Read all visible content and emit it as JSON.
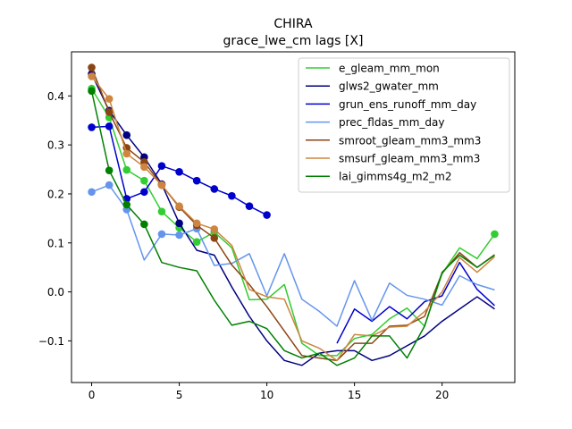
{
  "chart_data": {
    "type": "line",
    "title": "CHIRA",
    "subtitle": "grace_lwe_cm lags [X]",
    "xlabel": "",
    "ylabel": "",
    "xlim": [
      -1.15,
      24.15
    ],
    "ylim": [
      -0.185,
      0.49
    ],
    "x_ticks": [
      0,
      5,
      10,
      15,
      20
    ],
    "y_ticks": [
      -0.1,
      0.0,
      0.1,
      0.2,
      0.3,
      0.4
    ],
    "y_tick_labels": [
      "−0.1",
      "0.0",
      "0.1",
      "0.2",
      "0.3",
      "0.4"
    ],
    "grid": false,
    "legend_position": "top-right",
    "x": [
      0,
      1,
      2,
      3,
      4,
      5,
      6,
      7,
      8,
      9,
      10,
      11,
      12,
      13,
      14,
      15,
      16,
      17,
      18,
      19,
      20,
      21,
      22,
      23
    ],
    "series": [
      {
        "name": "e_gleam_mm_mon",
        "color": "#32cd32",
        "values": [
          0.415,
          0.356,
          0.249,
          0.227,
          0.164,
          0.131,
          0.102,
          0.122,
          0.09,
          -0.016,
          -0.015,
          0.015,
          -0.105,
          -0.13,
          -0.13,
          -0.095,
          -0.087,
          -0.055,
          -0.033,
          -0.07,
          0.037,
          0.09,
          0.068,
          0.118
        ],
        "markers": [
          0,
          1,
          2,
          3,
          4,
          5,
          6,
          7,
          23
        ]
      },
      {
        "name": "glws2_gwater_mm",
        "color": "#000080",
        "values": [
          0.445,
          0.37,
          0.32,
          0.275,
          0.22,
          0.14,
          0.085,
          0.075,
          0.01,
          -0.05,
          -0.1,
          -0.14,
          -0.15,
          -0.125,
          -0.12,
          -0.12,
          -0.14,
          -0.13,
          -0.11,
          -0.09,
          -0.06,
          -0.035,
          -0.01,
          -0.035
        ],
        "markers": [
          0,
          1,
          2,
          3,
          4,
          5
        ]
      },
      {
        "name": "grun_ens_runoff_mm_day",
        "color": "#0000cd",
        "values": [
          0.336,
          0.338,
          0.19,
          0.204,
          0.257,
          0.245,
          0.227,
          0.21,
          0.196,
          0.175,
          0.157,
          null,
          null,
          null,
          -0.105,
          -0.035,
          -0.06,
          -0.03,
          -0.055,
          -0.02,
          -0.008,
          0.06,
          0.005,
          -0.028
        ],
        "markers": [
          0,
          1,
          2,
          3,
          4,
          5,
          6,
          7,
          8,
          9,
          10
        ]
      },
      {
        "name": "prec_fldas_mm_day",
        "color": "#6495ed",
        "values": [
          0.204,
          0.218,
          0.168,
          0.065,
          0.118,
          0.116,
          0.129,
          0.054,
          0.058,
          0.078,
          -0.008,
          0.078,
          -0.015,
          -0.04,
          -0.07,
          0.023,
          -0.058,
          0.018,
          -0.007,
          -0.015,
          -0.027,
          0.033,
          0.015,
          0.004
        ],
        "markers": [
          0,
          1,
          2,
          4,
          5,
          6
        ]
      },
      {
        "name": "smroot_gleam_mm3_mm3",
        "color": "#8b4513",
        "values": [
          0.458,
          0.367,
          0.294,
          0.265,
          0.218,
          0.173,
          0.136,
          0.11,
          0.055,
          0.015,
          -0.03,
          -0.08,
          -0.13,
          -0.135,
          -0.14,
          -0.105,
          -0.105,
          -0.07,
          -0.068,
          -0.05,
          0.038,
          0.08,
          0.05,
          0.076
        ],
        "markers": [
          0,
          1,
          2,
          3,
          4,
          5,
          6,
          7
        ]
      },
      {
        "name": "smsurf_gleam_mm3_mm3",
        "color": "#cd853f",
        "values": [
          0.44,
          0.394,
          0.282,
          0.255,
          0.218,
          0.175,
          0.14,
          0.128,
          0.095,
          0.005,
          -0.01,
          -0.015,
          -0.1,
          -0.115,
          -0.14,
          -0.087,
          -0.09,
          -0.072,
          -0.07,
          -0.04,
          0.0,
          0.07,
          0.04,
          0.072
        ],
        "markers": [
          0,
          1,
          2,
          3,
          4,
          5,
          6,
          7
        ]
      },
      {
        "name": "lai_gimms4g_m2_m2",
        "color": "#008000",
        "values": [
          0.41,
          0.248,
          0.178,
          0.138,
          0.06,
          0.05,
          0.043,
          -0.017,
          -0.068,
          -0.06,
          -0.075,
          -0.12,
          -0.135,
          -0.125,
          -0.15,
          -0.135,
          -0.09,
          -0.09,
          -0.135,
          -0.07,
          0.04,
          0.075,
          0.05,
          0.075
        ],
        "markers": [
          0,
          1,
          2,
          3
        ]
      }
    ]
  }
}
